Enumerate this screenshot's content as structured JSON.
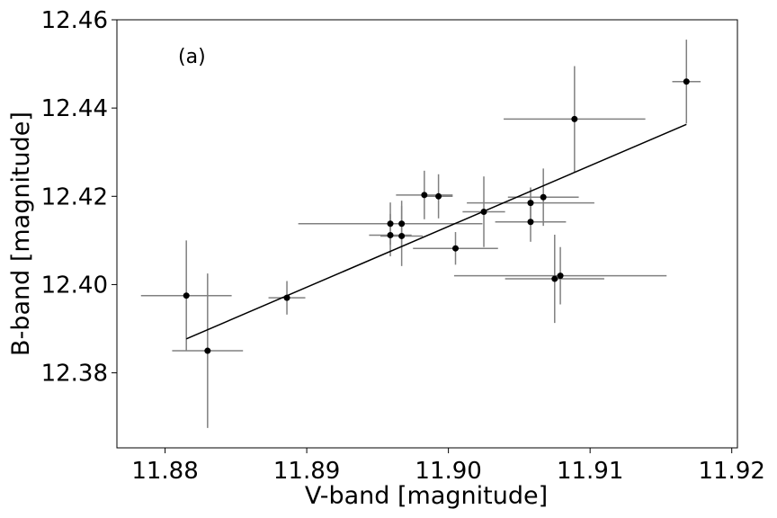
{
  "chart_data": {
    "type": "scatter",
    "xlabel": "V-band [magnitude]",
    "ylabel": "B-band [magnitude]",
    "annotation": "(a)",
    "xlim": [
      11.8766,
      11.9204
    ],
    "ylim": [
      12.363,
      12.46
    ],
    "xticks": [
      11.88,
      11.89,
      11.9,
      11.91,
      11.92
    ],
    "xtick_labels": [
      "11.88",
      "11.89",
      "11.90",
      "11.91",
      "11.92"
    ],
    "yticks": [
      12.38,
      12.4,
      12.42,
      12.44,
      12.46
    ],
    "ytick_labels": [
      "12.38",
      "12.40",
      "12.42",
      "12.44",
      "12.46"
    ],
    "grid": false,
    "colors": {
      "points": "#000000",
      "errorbars": "#808080",
      "fit": "#000000"
    },
    "points": [
      {
        "x": 11.8815,
        "y": 12.3975,
        "xerr": 0.0032,
        "yerr": 0.0125
      },
      {
        "x": 11.883,
        "y": 12.385,
        "xerr": 0.0025,
        "yerr": 0.0175
      },
      {
        "x": 11.8886,
        "y": 12.397,
        "xerr": 0.0013,
        "yerr": 0.0038
      },
      {
        "x": 11.8959,
        "y": 12.4138,
        "xerr": 0.0065,
        "yerr": 0.0048
      },
      {
        "x": 11.8959,
        "y": 12.4112,
        "xerr": 0.0015,
        "yerr": 0.0048
      },
      {
        "x": 11.8967,
        "y": 12.4138,
        "xerr": 0.0055,
        "yerr": 0.0052
      },
      {
        "x": 11.8967,
        "y": 12.411,
        "xerr": 0.0015,
        "yerr": 0.0068
      },
      {
        "x": 11.8983,
        "y": 12.4203,
        "xerr": 0.002,
        "yerr": 0.0055
      },
      {
        "x": 11.8993,
        "y": 12.42,
        "xerr": 0.001,
        "yerr": 0.005
      },
      {
        "x": 11.9005,
        "y": 12.4082,
        "xerr": 0.003,
        "yerr": 0.0037
      },
      {
        "x": 11.9025,
        "y": 12.4165,
        "xerr": 0.0015,
        "yerr": 0.008
      },
      {
        "x": 11.9058,
        "y": 12.4185,
        "xerr": 0.0045,
        "yerr": 0.0035
      },
      {
        "x": 11.9058,
        "y": 12.4142,
        "xerr": 0.0025,
        "yerr": 0.0045
      },
      {
        "x": 11.9067,
        "y": 12.4198,
        "xerr": 0.0025,
        "yerr": 0.0065
      },
      {
        "x": 11.9089,
        "y": 12.4375,
        "xerr": 0.005,
        "yerr": 0.012
      },
      {
        "x": 11.9075,
        "y": 12.4013,
        "xerr": 0.0035,
        "yerr": 0.01
      },
      {
        "x": 11.9079,
        "y": 12.402,
        "xerr": 0.0075,
        "yerr": 0.0065
      },
      {
        "x": 11.9168,
        "y": 12.446,
        "xerr": 0.001,
        "yerr": 0.0095
      }
    ],
    "fit_line": {
      "x": [
        11.8815,
        11.9168
      ],
      "y": [
        12.3877,
        12.4363
      ]
    }
  }
}
